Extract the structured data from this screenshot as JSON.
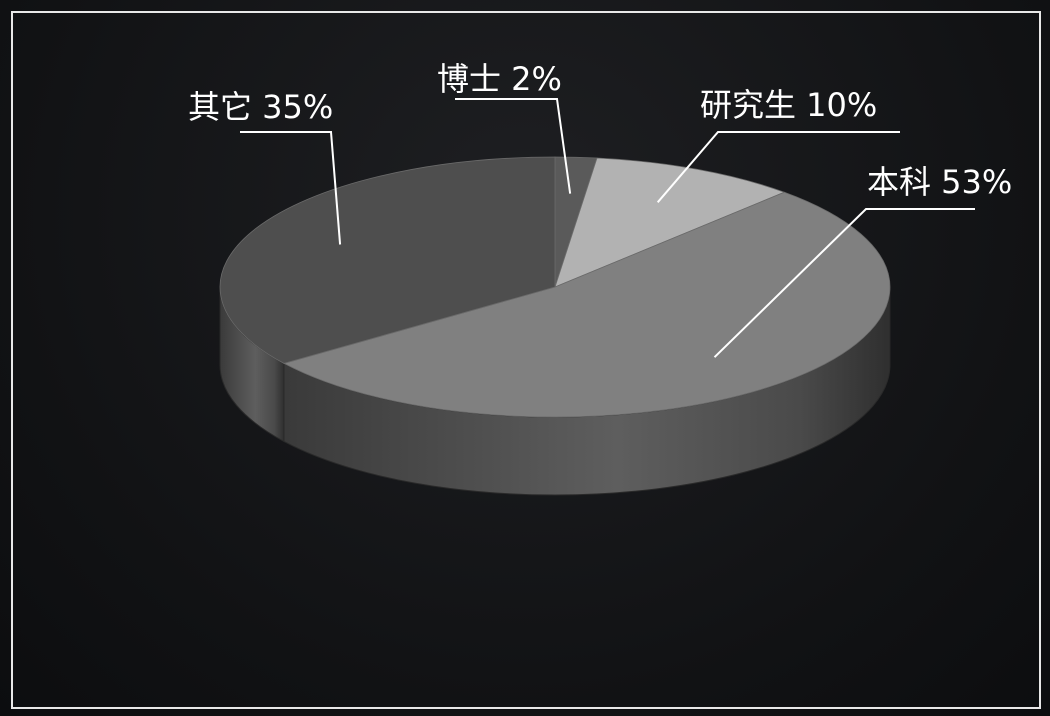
{
  "chart_data": {
    "type": "pie",
    "three_d": true,
    "categories": [
      "博士",
      "研究生",
      "本科",
      "其它"
    ],
    "values": [
      2,
      10,
      53,
      35
    ],
    "labels": [
      "博士 2%",
      "研究生 10%",
      "本科 53%",
      "其它 35%"
    ],
    "colors": [
      "#5a5a5a",
      "#b2b2b2",
      "#808080",
      "#4e4e4e"
    ],
    "title": "",
    "legend": "none"
  }
}
